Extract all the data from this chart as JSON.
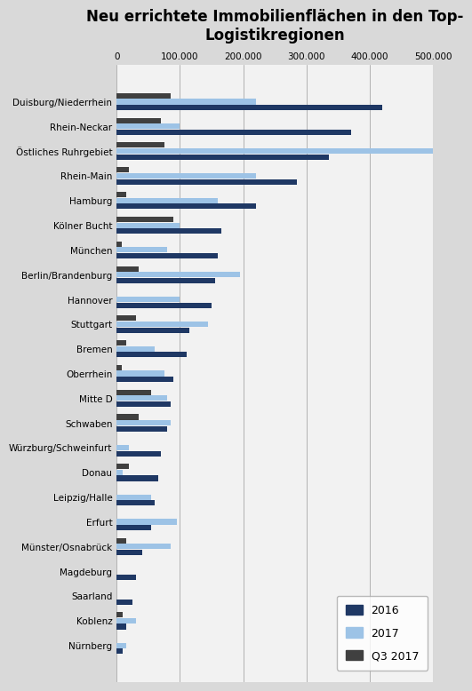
{
  "title": "Neu errichtete Immobilienflächen in den Top-\nLogistikregionen",
  "categories": [
    "Duisburg/Niederrhein",
    "Rhein-Neckar",
    "Östliches Ruhrgebiet",
    "Rhein-Main",
    "Hamburg",
    "Kölner Bucht",
    "München",
    "Berlin/Brandenburg",
    "Hannover",
    "Stuttgart",
    "Bremen",
    "Oberrhein",
    "Mitte D",
    "Schwaben",
    "Würzburg/Schweinfurt",
    "Donau",
    "Leipzig/Halle",
    "Erfurt",
    "Münster/Osnabrück",
    "Magdeburg",
    "Saarland",
    "Koblenz",
    "Nürnberg"
  ],
  "values_2016": [
    420000,
    370000,
    335000,
    285000,
    220000,
    165000,
    160000,
    155000,
    150000,
    115000,
    110000,
    90000,
    85000,
    80000,
    70000,
    65000,
    60000,
    55000,
    40000,
    30000,
    25000,
    15000,
    10000
  ],
  "values_2017": [
    220000,
    100000,
    510000,
    220000,
    160000,
    100000,
    80000,
    195000,
    100000,
    145000,
    60000,
    75000,
    80000,
    85000,
    20000,
    10000,
    55000,
    95000,
    85000,
    0,
    0,
    30000,
    15000
  ],
  "values_q3_2017": [
    85000,
    70000,
    75000,
    20000,
    15000,
    90000,
    8000,
    35000,
    0,
    30000,
    15000,
    8000,
    55000,
    35000,
    0,
    20000,
    0,
    0,
    15000,
    0,
    0,
    10000,
    0
  ],
  "color_2016": "#1f3864",
  "color_2017": "#9dc3e6",
  "color_q3_2017": "#404040",
  "xlim": [
    0,
    500000
  ],
  "xticks": [
    0,
    100000,
    200000,
    300000,
    400000,
    500000
  ],
  "xticklabels": [
    "0",
    "100.000",
    "200.000",
    "300.000",
    "400.000",
    "500.000"
  ],
  "background_color": "#d9d9d9",
  "plot_bg_color": "#f2f2f2",
  "title_fontsize": 12,
  "tick_fontsize": 7.5,
  "label_fontsize": 7.5,
  "legend_labels": [
    "2016",
    "2017",
    "Q3 2017"
  ]
}
